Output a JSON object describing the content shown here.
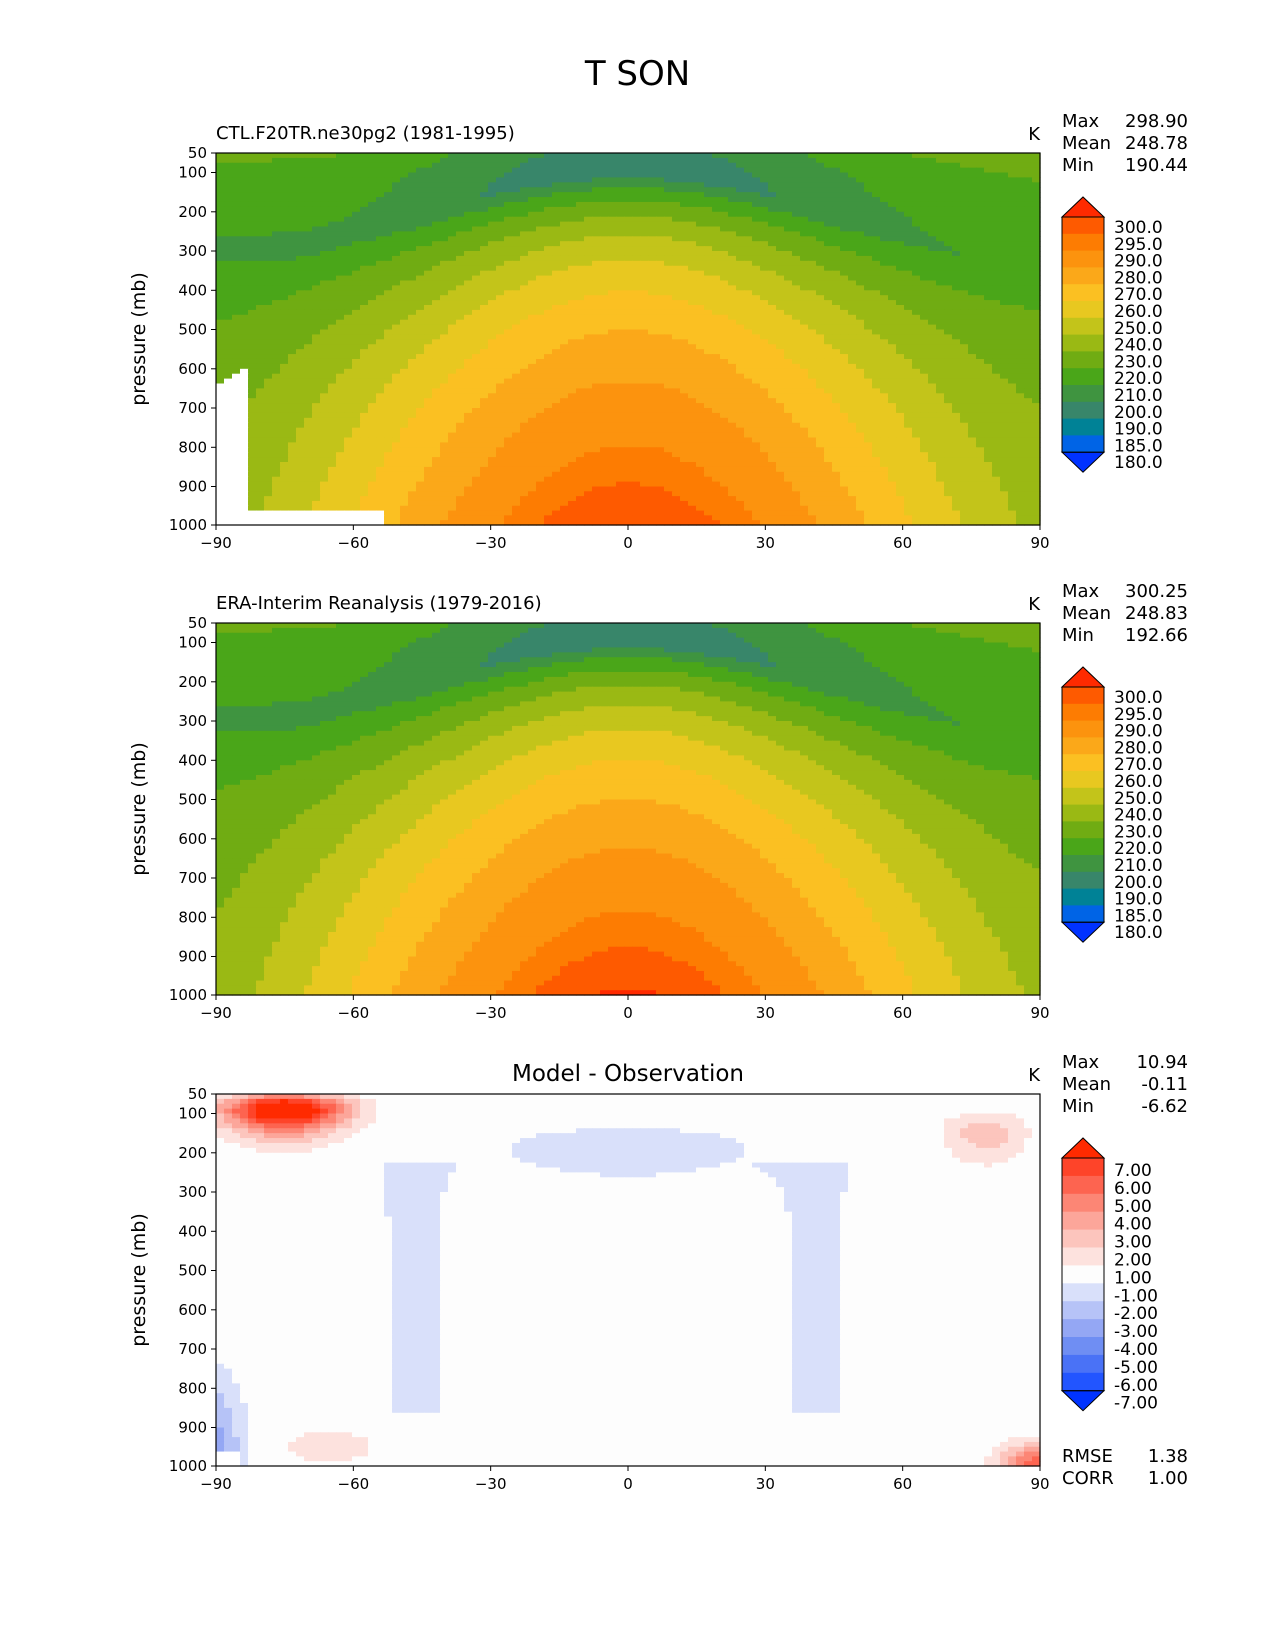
{
  "figure": {
    "title": "T SON"
  },
  "chart_data": [
    {
      "type": "heatmap",
      "title": "CTL.F20TR.ne30pg2 (1981-1995)",
      "units": "K",
      "xlabel": "",
      "ylabel": "pressure (mb)",
      "xlim": [
        -90,
        90
      ],
      "ylim": [
        1000,
        50
      ],
      "xticks": [
        "−90",
        "−60",
        "−30",
        "0",
        "30",
        "60",
        "90"
      ],
      "yticks": [
        "50",
        "100",
        "200",
        "300",
        "400",
        "500",
        "600",
        "700",
        "800",
        "900",
        "1000"
      ],
      "stats": [
        {
          "label": "Max",
          "value": "298.90"
        },
        {
          "label": "Mean",
          "value": "248.78"
        },
        {
          "label": "Min",
          "value": "190.44"
        }
      ],
      "colorbar_levels": [
        "300.0",
        "295.0",
        "290.0",
        "280.0",
        "270.0",
        "260.0",
        "250.0",
        "240.0",
        "230.0",
        "220.0",
        "210.0",
        "200.0",
        "190.0",
        "185.0",
        "180.0"
      ]
    },
    {
      "type": "heatmap",
      "title": "ERA-Interim Reanalysis (1979-2016)",
      "units": "K",
      "xlabel": "",
      "ylabel": "pressure (mb)",
      "xlim": [
        -90,
        90
      ],
      "ylim": [
        1000,
        50
      ],
      "xticks": [
        "−90",
        "−60",
        "−30",
        "0",
        "30",
        "60",
        "90"
      ],
      "yticks": [
        "50",
        "100",
        "200",
        "300",
        "400",
        "500",
        "600",
        "700",
        "800",
        "900",
        "1000"
      ],
      "stats": [
        {
          "label": "Max",
          "value": "300.25"
        },
        {
          "label": "Mean",
          "value": "248.83"
        },
        {
          "label": "Min",
          "value": "192.66"
        }
      ],
      "colorbar_levels": [
        "300.0",
        "295.0",
        "290.0",
        "280.0",
        "270.0",
        "260.0",
        "250.0",
        "240.0",
        "230.0",
        "220.0",
        "210.0",
        "200.0",
        "190.0",
        "185.0",
        "180.0"
      ]
    },
    {
      "type": "heatmap",
      "title": "Model - Observation",
      "units": "K",
      "xlabel": "",
      "ylabel": "pressure (mb)",
      "xlim": [
        -90,
        90
      ],
      "ylim": [
        1000,
        50
      ],
      "xticks": [
        "−90",
        "−60",
        "−30",
        "0",
        "30",
        "60",
        "90"
      ],
      "yticks": [
        "50",
        "100",
        "200",
        "300",
        "400",
        "500",
        "600",
        "700",
        "800",
        "900",
        "1000"
      ],
      "stats": [
        {
          "label": "Max",
          "value": "10.94"
        },
        {
          "label": "Mean",
          "value": "-0.11"
        },
        {
          "label": "Min",
          "value": "-6.62"
        }
      ],
      "extra_stats": [
        {
          "label": "RMSE",
          "value": "1.38"
        },
        {
          "label": "CORR",
          "value": "1.00"
        }
      ],
      "colorbar_levels": [
        "7.00",
        "6.00",
        "5.00",
        "4.00",
        "3.00",
        "2.00",
        "1.00",
        "-1.00",
        "-2.00",
        "-3.00",
        "-4.00",
        "-5.00",
        "-6.00",
        "-7.00"
      ]
    }
  ],
  "palettes": {
    "temperature": [
      "#0032ff",
      "#0064e6",
      "#008296",
      "#38866a",
      "#3f9440",
      "#4aa619",
      "#70ac13",
      "#9ab914",
      "#c3c41a",
      "#e8c820",
      "#fbc022",
      "#fba819",
      "#fc930e",
      "#fd7c02",
      "#fe5a00",
      "#ff2a00"
    ],
    "difference": [
      "#0033ff",
      "#2255ff",
      "#4a72f6",
      "#6f8ef3",
      "#94a7f4",
      "#b6c3f7",
      "#d9e0fa",
      "#fdfdfd",
      "#fde2de",
      "#fcc5bd",
      "#fca69a",
      "#fc8675",
      "#fd6450",
      "#fe4429",
      "#ff2a00"
    ]
  },
  "missing_color": "#ffffff"
}
